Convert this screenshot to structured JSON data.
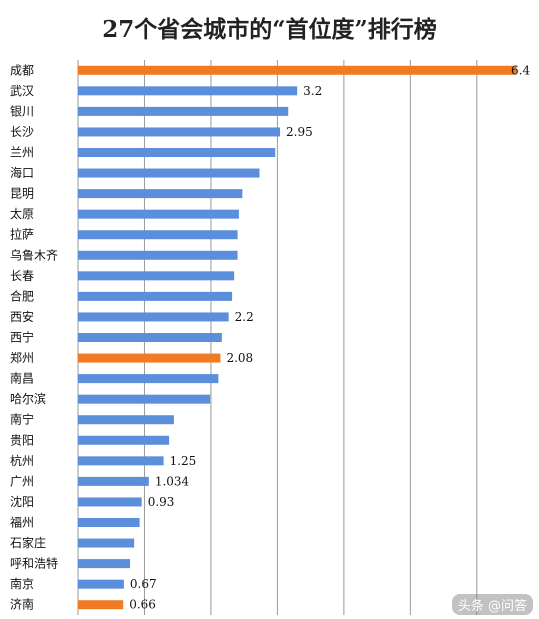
{
  "title": "27个省会城市的“首位度”排行榜",
  "watermark": "头条 @问答",
  "colors": {
    "normal": "#5b8fdb",
    "highlight": "#f07b22"
  },
  "chart_data": {
    "type": "bar",
    "orientation": "horizontal",
    "title": "27个省会城市的“首位度”排行榜",
    "xlim": [
      0,
      6.6
    ],
    "grid": true,
    "categories": [
      "成都",
      "武汉",
      "银川",
      "长沙",
      "兰州",
      "海口",
      "昆明",
      "太原",
      "拉萨",
      "乌鲁木齐",
      "长春",
      "合肥",
      "西安",
      "西宁",
      "郑州",
      "南昌",
      "哈尔滨",
      "南宁",
      "贵阳",
      "杭州",
      "广州",
      "沈阳",
      "福州",
      "石家庄",
      "呼和浩特",
      "南京",
      "济南"
    ],
    "values": [
      6.4,
      3.2,
      3.07,
      2.95,
      2.88,
      2.65,
      2.4,
      2.35,
      2.33,
      2.33,
      2.28,
      2.25,
      2.2,
      2.1,
      2.08,
      2.05,
      1.93,
      1.4,
      1.33,
      1.25,
      1.034,
      0.93,
      0.9,
      0.82,
      0.76,
      0.67,
      0.66
    ],
    "data_labels": [
      "6.4",
      "3.2",
      "",
      "2.95",
      "",
      "",
      "",
      "",
      "",
      "",
      "",
      "",
      "2.2",
      "",
      "2.08",
      "",
      "",
      "",
      "",
      "1.25",
      "1.034",
      "0.93",
      "",
      "",
      "",
      "0.67",
      "0.66"
    ],
    "highlight": [
      "成都",
      "郑州",
      "济南"
    ]
  }
}
